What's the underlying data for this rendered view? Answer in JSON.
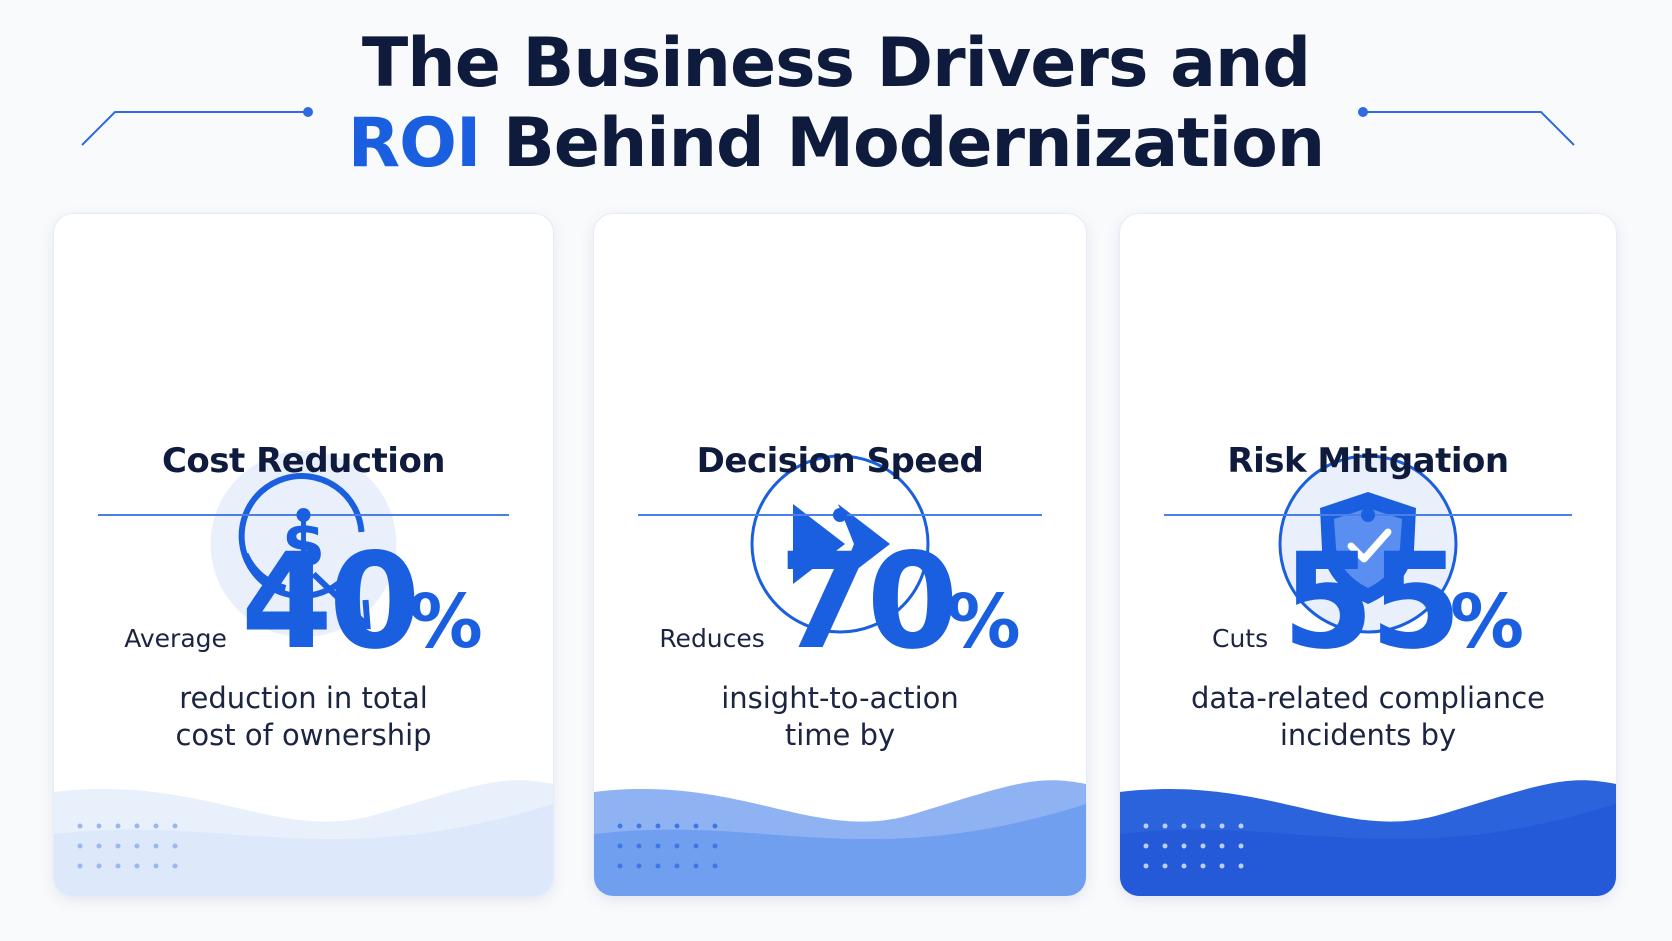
{
  "header": {
    "title_line1": "The Business Drivers and",
    "title_highlight": "ROI",
    "title_line2_rest": "Behind Modernization"
  },
  "cards": [
    {
      "title": "Cost Reduction",
      "prefix": "Average",
      "value": 40,
      "unit": "%",
      "description": [
        "reduction in total",
        "cost of ownership"
      ]
    },
    {
      "title": "Decision Speed",
      "prefix": "Reduces",
      "value": 70,
      "unit": "%",
      "description": [
        "insight-to-action",
        "time by"
      ]
    },
    {
      "title": "Risk Mitigation",
      "prefix": "Cuts",
      "value": 55,
      "unit": "%",
      "description": [
        "data-related compliance",
        "incidents by"
      ]
    }
  ]
}
